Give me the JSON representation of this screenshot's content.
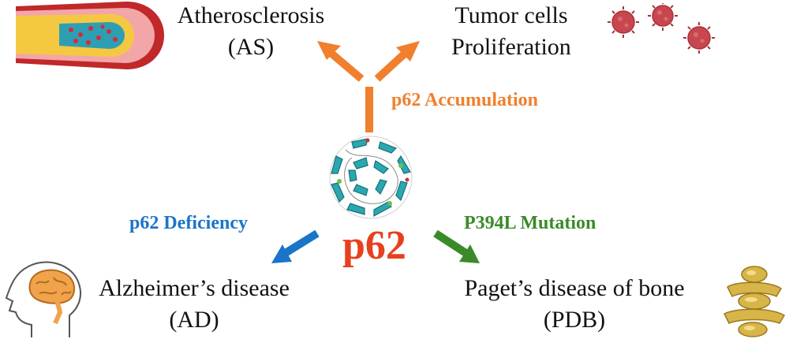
{
  "center": {
    "label": "p62"
  },
  "pathways": {
    "accumulation": {
      "label": "p62 Accumulation",
      "color": "#f07f2e"
    },
    "deficiency": {
      "label": "p62 Deficiency",
      "color": "#1a74c9"
    },
    "mutation": {
      "label": "P394L Mutation",
      "color": "#3a8a2a"
    }
  },
  "outcomes": {
    "as": {
      "line1": "Atherosclerosis",
      "line2": "(AS)"
    },
    "tumor": {
      "line1": "Tumor cells",
      "line2": "Proliferation"
    },
    "ad": {
      "line1": "Alzheimer’s disease",
      "line2": "(AD)"
    },
    "pdb": {
      "line1": "Paget’s disease of bone",
      "line2": "(PDB)"
    }
  },
  "icons": {
    "artery": "artery-icon",
    "virus": "tumor-cell-icon",
    "brain": "brain-head-icon",
    "bone": "vertebra-bone-icon",
    "protein": "p62-protein-structure-icon"
  }
}
